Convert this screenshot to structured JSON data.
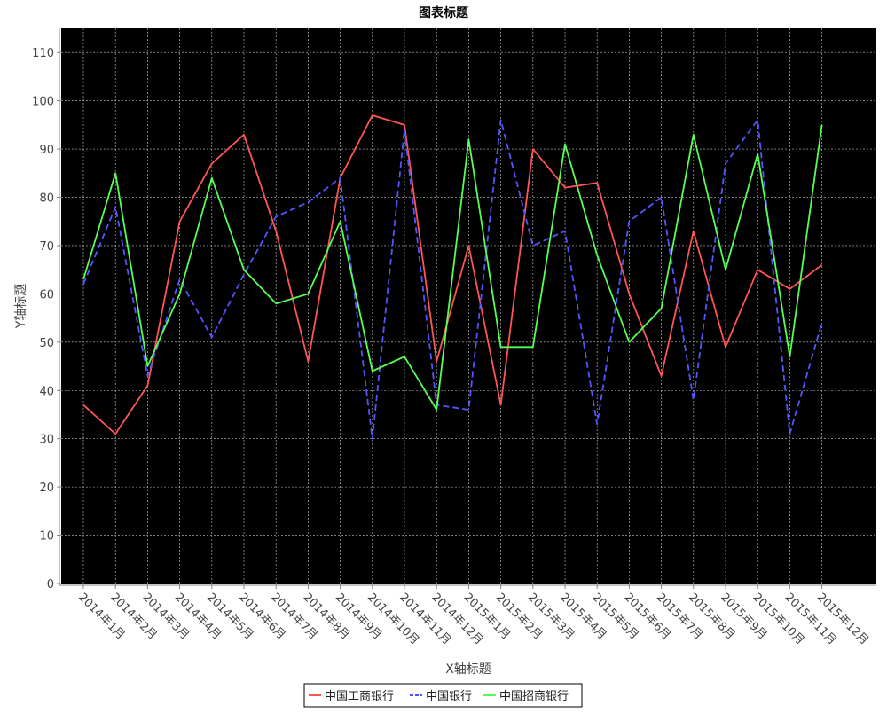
{
  "chart_data": {
    "type": "line",
    "title": "图表标题",
    "xlabel": "X轴标题",
    "ylabel": "Y轴标题",
    "categories": [
      "2014年1月",
      "2014年2月",
      "2014年3月",
      "2014年4月",
      "2014年5月",
      "2014年6月",
      "2014年7月",
      "2014年8月",
      "2014年9月",
      "2014年10月",
      "2014年11月",
      "2014年12月",
      "2015年1月",
      "2015年2月",
      "2015年3月",
      "2015年4月",
      "2015年5月",
      "2015年6月",
      "2015年7月",
      "2015年8月",
      "2015年9月",
      "2015年10月",
      "2015年11月",
      "2015年12月"
    ],
    "ylim": [
      0,
      115
    ],
    "yticks": [
      0,
      10,
      20,
      30,
      40,
      50,
      60,
      70,
      80,
      90,
      100,
      110
    ],
    "grid": true,
    "background": "#000000",
    "legend_position": "bottom",
    "series": [
      {
        "name": "中国工商银行",
        "color": "#ff5555",
        "dash": "solid",
        "values": [
          37,
          31,
          41,
          75,
          87,
          93,
          73,
          46,
          84,
          97,
          95,
          46,
          70,
          37,
          90,
          82,
          83,
          60,
          43,
          73,
          49,
          65,
          61,
          66
        ]
      },
      {
        "name": "中国银行",
        "color": "#5555ff",
        "dash": "dashed",
        "values": [
          62,
          78,
          43,
          63,
          51,
          64,
          76,
          79,
          84,
          30,
          94,
          37,
          36,
          96,
          70,
          73,
          33,
          75,
          80,
          38,
          87,
          96,
          31,
          54
        ]
      },
      {
        "name": "中国招商银行",
        "color": "#55ff55",
        "dash": "solid",
        "values": [
          63,
          85,
          45,
          60,
          84,
          65,
          58,
          60,
          75,
          44,
          47,
          36,
          92,
          49,
          49,
          91,
          68,
          50,
          57,
          93,
          65,
          89,
          47,
          95
        ]
      }
    ]
  }
}
